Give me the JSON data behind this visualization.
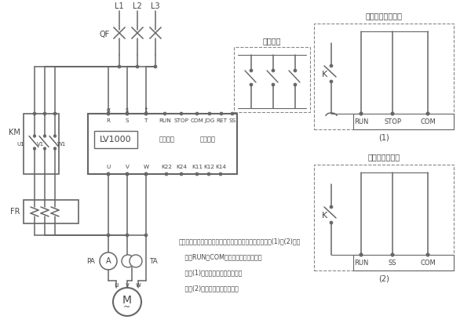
{
  "bg_color": "#ffffff",
  "line_color": "#666666",
  "figsize": [
    6.0,
    4.12
  ],
  "dpi": 100,
  "lv1000_label": "LV1000",
  "bypass_label": "旁路控制",
  "fault_label": "故障输出",
  "three_wire_label": "三线控制",
  "two_wire_free_label": "二线控制自由停车",
  "two_wire_soft_label": "二线控制软停车",
  "note_line1": "注：软起动器的外控起动、停止也可以用二线控制《见图(1)和(2)》。",
  "note_line2": "   利用RUN和COM的闭合和断开来控制；",
  "note_line3": "   按图(1)接线，停车为自由停车。",
  "note_line4": "   按图(2)接线，停车为软停车。"
}
